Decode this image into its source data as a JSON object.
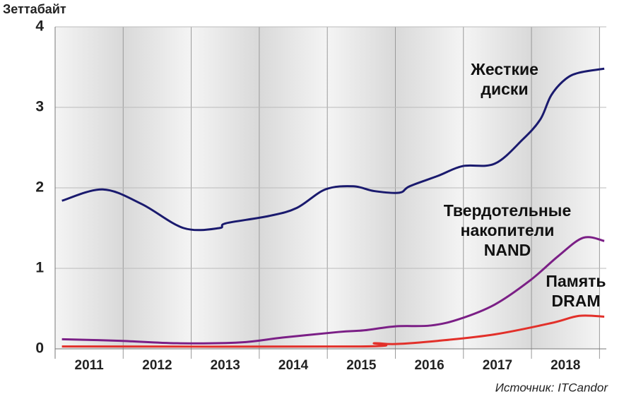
{
  "chart_data": {
    "type": "line",
    "y_label": "Зеттабайт",
    "source": "Источник: ITCandor",
    "xlim": [
      2011,
      2019.1
    ],
    "ylim": [
      0,
      4
    ],
    "yticks": [
      0,
      1,
      2,
      3,
      4
    ],
    "xticks": [
      {
        "value": 2011.5,
        "label": "2011"
      },
      {
        "value": 2012.5,
        "label": "2012"
      },
      {
        "value": 2013.5,
        "label": "2013"
      },
      {
        "value": 2014.5,
        "label": "2014"
      },
      {
        "value": 2015.5,
        "label": "2015"
      },
      {
        "value": 2016.5,
        "label": "2016"
      },
      {
        "value": 2017.5,
        "label": "2017"
      },
      {
        "value": 2018.5,
        "label": "2018"
      }
    ],
    "grid": true,
    "series": [
      {
        "name": "Жесткие диски",
        "label_lines": [
          "Жесткие",
          "диски"
        ],
        "color": "#1a1a6e",
        "x": [
          2011.1,
          2011.7,
          2012.27,
          2012.89,
          2013.41,
          2013.51,
          2014.14,
          2014.55,
          2014.97,
          2015.38,
          2015.69,
          2016.06,
          2016.21,
          2016.63,
          2016.99,
          2017.46,
          2017.87,
          2018.13,
          2018.29,
          2018.5,
          2018.7,
          2019.07
        ],
        "values": [
          1.84,
          1.98,
          1.8,
          1.5,
          1.5,
          1.56,
          1.65,
          1.75,
          1.98,
          2.02,
          1.96,
          1.94,
          2.02,
          2.15,
          2.27,
          2.3,
          2.6,
          2.85,
          3.15,
          3.35,
          3.43,
          3.48
        ]
      },
      {
        "name": "Твердотельные накопители NAND",
        "label_lines": [
          "Твердотельные",
          "накопители",
          "NAND"
        ],
        "color": "#7b1f86",
        "x": [
          2011.1,
          2011.96,
          2012.79,
          2013.72,
          2014.34,
          2015.17,
          2015.54,
          2016.0,
          2016.52,
          2016.94,
          2017.46,
          2017.98,
          2018.39,
          2018.76,
          2019.07
        ],
        "values": [
          0.12,
          0.1,
          0.07,
          0.08,
          0.14,
          0.21,
          0.23,
          0.28,
          0.29,
          0.37,
          0.55,
          0.85,
          1.15,
          1.38,
          1.34
        ]
      },
      {
        "name": "Память DRAM",
        "label_lines": [
          "Память",
          "DRAM"
        ],
        "color": "#e2302a",
        "x": [
          2011.1,
          2015.49,
          2015.69,
          2016.0,
          2016.63,
          2017.46,
          2018.29,
          2018.7,
          2019.07
        ],
        "values": [
          0.03,
          0.03,
          0.07,
          0.06,
          0.1,
          0.18,
          0.32,
          0.41,
          0.4
        ]
      }
    ]
  }
}
